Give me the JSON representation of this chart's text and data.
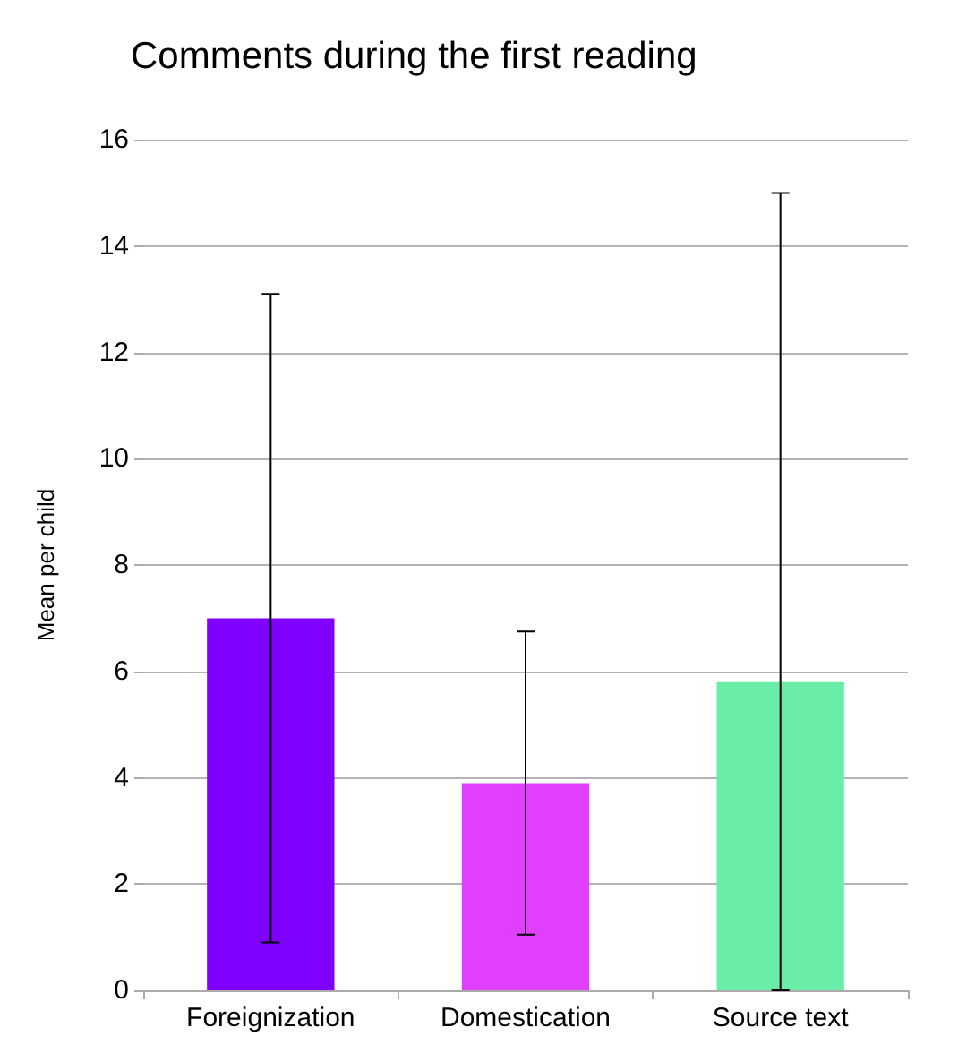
{
  "chart_data": {
    "type": "bar",
    "title": "Comments during the first reading",
    "ylabel": "Mean per child",
    "categories": [
      "Foreignization",
      "Domestication",
      "Source text"
    ],
    "values": [
      7.0,
      3.9,
      5.8
    ],
    "colors": [
      "#7f00ff",
      "#e040fb",
      "#69eda9"
    ],
    "errors": [
      6.1,
      2.85,
      [
        0,
        15.0
      ]
    ],
    "ylim": [
      0,
      16
    ],
    "yticks": [
      0,
      2,
      4,
      6,
      8,
      10,
      12,
      14,
      16
    ],
    "grid": "y"
  }
}
